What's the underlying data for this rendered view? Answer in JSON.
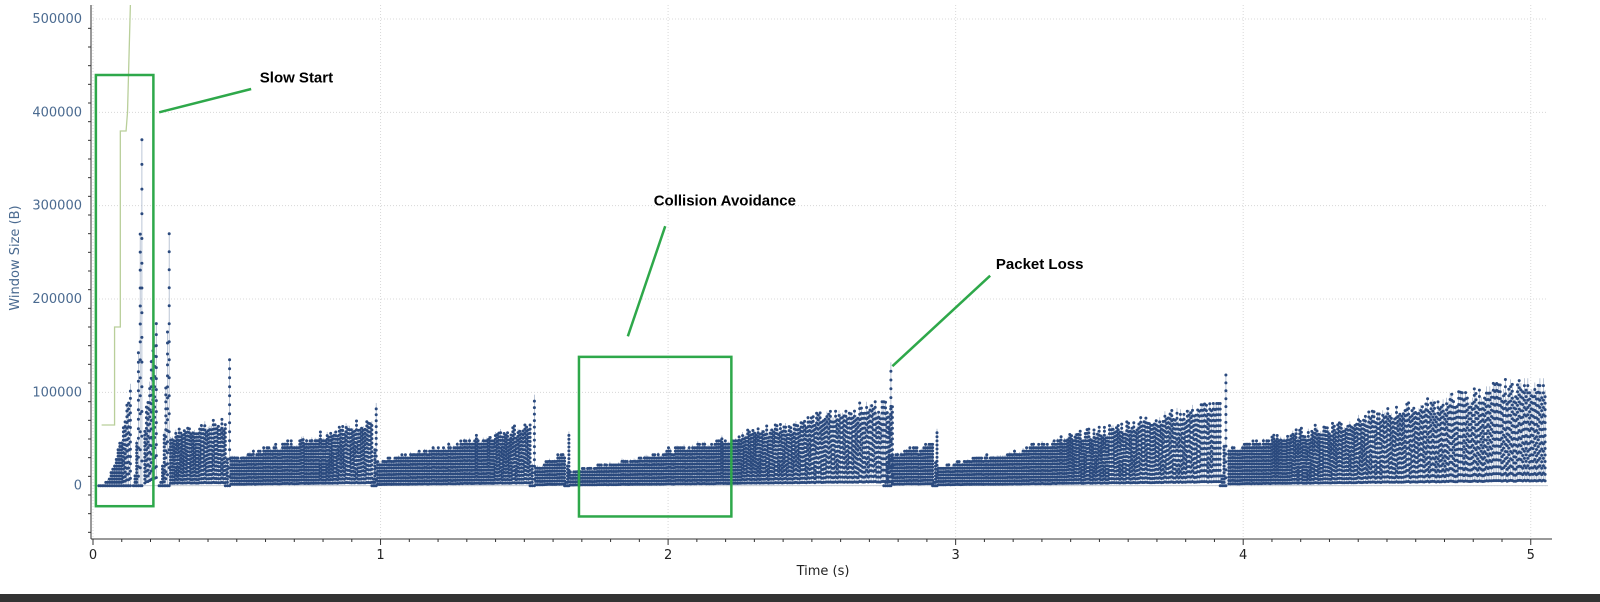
{
  "chart_data": {
    "type": "scatter",
    "title": "",
    "xlabel": "Time (s)",
    "ylabel": "Window Size (B)",
    "xlim": [
      0,
      5.06
    ],
    "ylim": [
      -55000,
      515000
    ],
    "x_ticks": [
      0,
      1,
      2,
      3,
      4,
      5
    ],
    "x_tick_labels": [
      "0",
      "1",
      "2",
      "3",
      "4",
      "5"
    ],
    "y_ticks": [
      0,
      100000,
      200000,
      300000,
      400000,
      500000
    ],
    "y_tick_labels": [
      "0",
      "100000",
      "200000",
      "300000",
      "400000",
      "500000"
    ],
    "grid": true,
    "colors": {
      "points": "#2b4a7e",
      "line": "#aab7cc",
      "cwnd_line": "#b9cf9a",
      "annotation": "#2ea84a",
      "axis_text": "#4a6a90",
      "bottom_bar": "#333333"
    },
    "series": [
      {
        "segments": [
          {
            "x0": 0.02,
            "x1": 0.13,
            "start": 0,
            "peak": 110000,
            "max": 220000,
            "growth": "exp"
          },
          {
            "x0": 0.14,
            "x1": 0.17,
            "start": 0,
            "peak": 410000,
            "max": 410000,
            "growth": "exp"
          },
          {
            "x0": 0.18,
            "x1": 0.22,
            "start": 60000,
            "peak": 190000,
            "max": 190000,
            "growth": "lin"
          },
          {
            "x0": 0.23,
            "x1": 0.265,
            "start": 0,
            "peak": 270000,
            "max": 270000,
            "growth": "exp"
          },
          {
            "x0": 0.27,
            "x1": 0.46,
            "start": 55000,
            "peak": 70000,
            "max": 95000,
            "growth": "lin"
          },
          {
            "x0": 0.46,
            "x1": 0.475,
            "start": 0,
            "peak": 135000,
            "max": 135000,
            "growth": "exp"
          },
          {
            "x0": 0.48,
            "x1": 0.97,
            "start": 30000,
            "peak": 70000,
            "max": 70000,
            "growth": "lin"
          },
          {
            "x0": 0.97,
            "x1": 0.985,
            "start": 0,
            "peak": 98000,
            "max": 98000,
            "growth": "exp"
          },
          {
            "x0": 0.99,
            "x1": 1.52,
            "start": 25000,
            "peak": 65000,
            "max": 65000,
            "growth": "lin"
          },
          {
            "x0": 1.52,
            "x1": 1.535,
            "start": 0,
            "peak": 102000,
            "max": 102000,
            "growth": "exp"
          },
          {
            "x0": 1.54,
            "x1": 1.64,
            "start": 20000,
            "peak": 35000,
            "max": 35000,
            "growth": "lin"
          },
          {
            "x0": 1.64,
            "x1": 1.655,
            "start": 0,
            "peak": 58000,
            "max": 58000,
            "growth": "exp"
          },
          {
            "x0": 1.66,
            "x1": 2.78,
            "start": 15000,
            "peak": 90000,
            "max": 90000,
            "growth": "lin"
          },
          {
            "x0": 2.75,
            "x1": 2.775,
            "start": 0,
            "peak": 133000,
            "max": 133000,
            "growth": "exp"
          },
          {
            "x0": 2.78,
            "x1": 2.92,
            "start": 35000,
            "peak": 45000,
            "max": 45000,
            "growth": "lin"
          },
          {
            "x0": 2.92,
            "x1": 2.935,
            "start": 0,
            "peak": 65000,
            "max": 65000,
            "growth": "exp"
          },
          {
            "x0": 2.94,
            "x1": 3.92,
            "start": 20000,
            "peak": 88000,
            "max": 88000,
            "growth": "lin"
          },
          {
            "x0": 3.92,
            "x1": 3.94,
            "start": 0,
            "peak": 125000,
            "max": 125000,
            "growth": "exp"
          },
          {
            "x0": 3.95,
            "x1": 5.05,
            "start": 40000,
            "peak": 115000,
            "max": 115000,
            "growth": "lin"
          }
        ]
      }
    ],
    "cwnd_steps": [
      {
        "x": 0.03,
        "y": 65000
      },
      {
        "x": 0.075,
        "y": 65000
      },
      {
        "x": 0.075,
        "y": 170000
      },
      {
        "x": 0.095,
        "y": 170000
      },
      {
        "x": 0.095,
        "y": 380000
      },
      {
        "x": 0.115,
        "y": 380000
      },
      {
        "x": 0.12,
        "y": 400000
      },
      {
        "x": 0.13,
        "y": 515000
      }
    ],
    "annotations": [
      {
        "text": "Slow Start",
        "box": {
          "x0": 0.01,
          "x1": 0.21,
          "y0": -22000,
          "y1": 440000
        },
        "pointer": [
          {
            "x": 0.23,
            "y": 400000
          },
          {
            "x": 0.55,
            "y": 425000
          }
        ],
        "label_at": {
          "x": 0.58,
          "y": 432000
        }
      },
      {
        "text": "Collision Avoidance",
        "box": {
          "x0": 1.69,
          "x1": 2.22,
          "y0": -33000,
          "y1": 138000
        },
        "pointer": [
          {
            "x": 1.86,
            "y": 160000
          },
          {
            "x": 1.99,
            "y": 278000
          }
        ],
        "label_at": {
          "x": 1.95,
          "y": 300000
        }
      },
      {
        "text": "Packet Loss",
        "box": null,
        "pointer": [
          {
            "x": 2.78,
            "y": 128000
          },
          {
            "x": 3.12,
            "y": 225000
          }
        ],
        "label_at": {
          "x": 3.14,
          "y": 232000
        }
      }
    ]
  }
}
